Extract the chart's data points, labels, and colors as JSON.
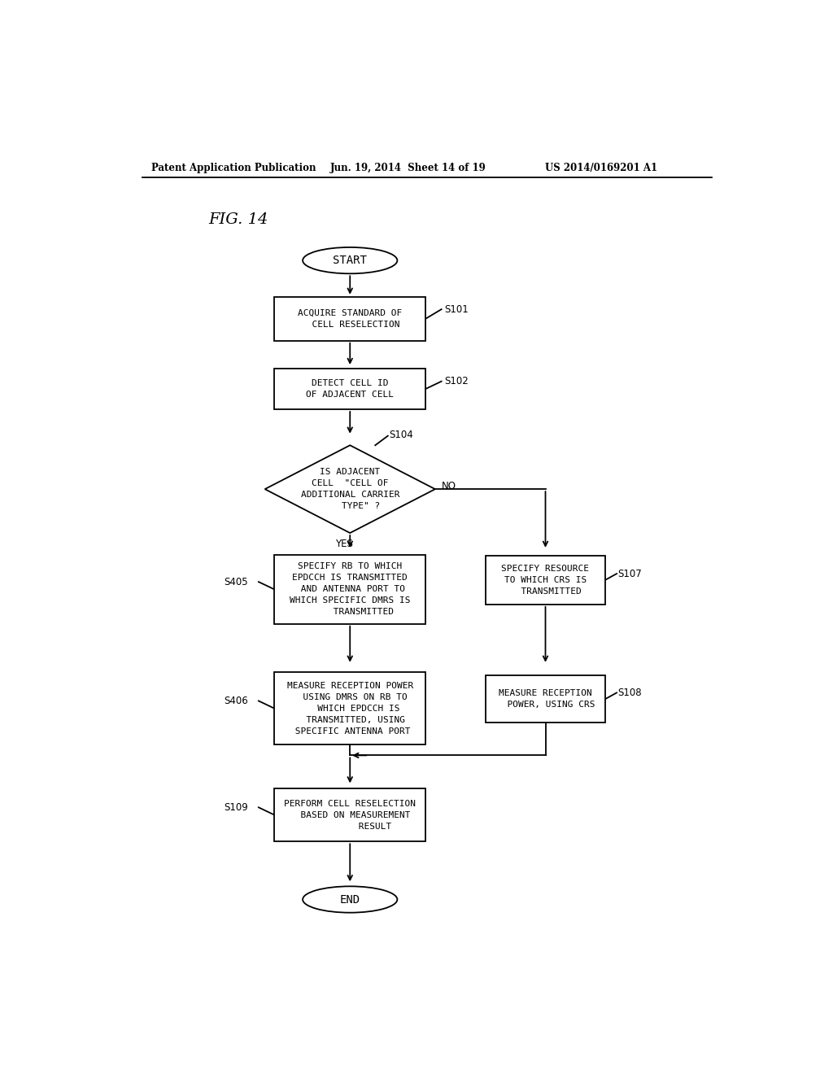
{
  "fig_label": "FIG. 14",
  "header_left": "Patent Application Publication",
  "header_mid": "Jun. 19, 2014  Sheet 14 of 19",
  "header_right": "US 2014/0169201 A1",
  "background_color": "#ffffff",
  "font_size_box": 8.0,
  "font_size_label": 8.5,
  "font_size_header": 8.5,
  "font_size_fig": 14,
  "line_color": "#000000",
  "box_color": "#ffffff",
  "text_color": "#000000",
  "lw": 1.3
}
